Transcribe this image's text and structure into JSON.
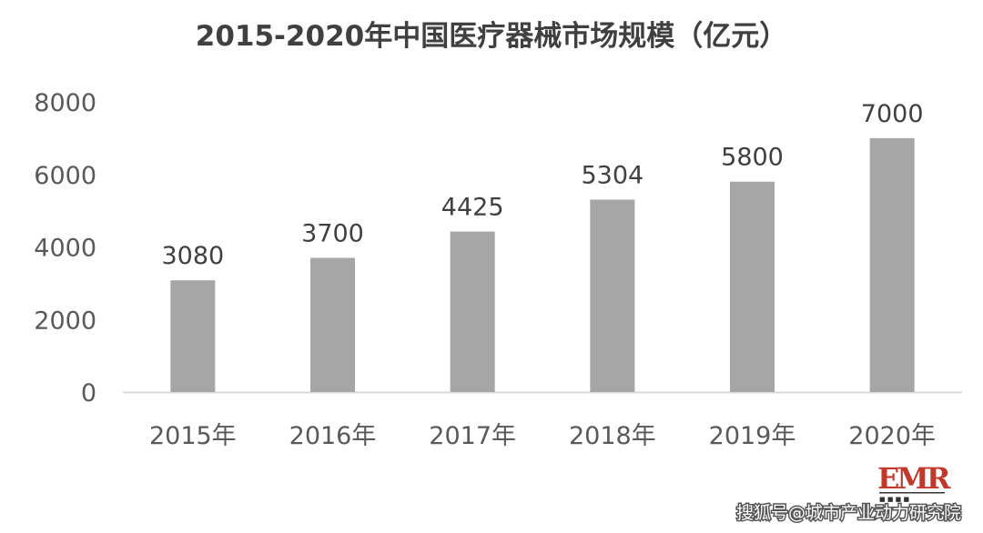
{
  "chart_data": {
    "type": "bar",
    "title": "2015-2020年中国医疗器械市场规模（亿元）",
    "categories": [
      "2015年",
      "2016年",
      "2017年",
      "2018年",
      "2019年",
      "2020年"
    ],
    "values": [
      3080,
      3700,
      4425,
      5304,
      5800,
      7000
    ],
    "data_labels": [
      "3080",
      "3700",
      "4425",
      "5304",
      "5800",
      "7000"
    ],
    "yticks": [
      "0",
      "2000",
      "4000",
      "6000",
      "8000"
    ],
    "ylim": [
      0,
      8000
    ],
    "xlabel": "",
    "ylabel": "",
    "grid": false,
    "legend": "none",
    "bar_color": "#a6a6a6",
    "axis_color": "#d9d9d9"
  },
  "logo": {
    "text": "EMR",
    "color": "#c0392b"
  },
  "watermark": {
    "text": "搜狐号@城市产业动力研究院"
  }
}
